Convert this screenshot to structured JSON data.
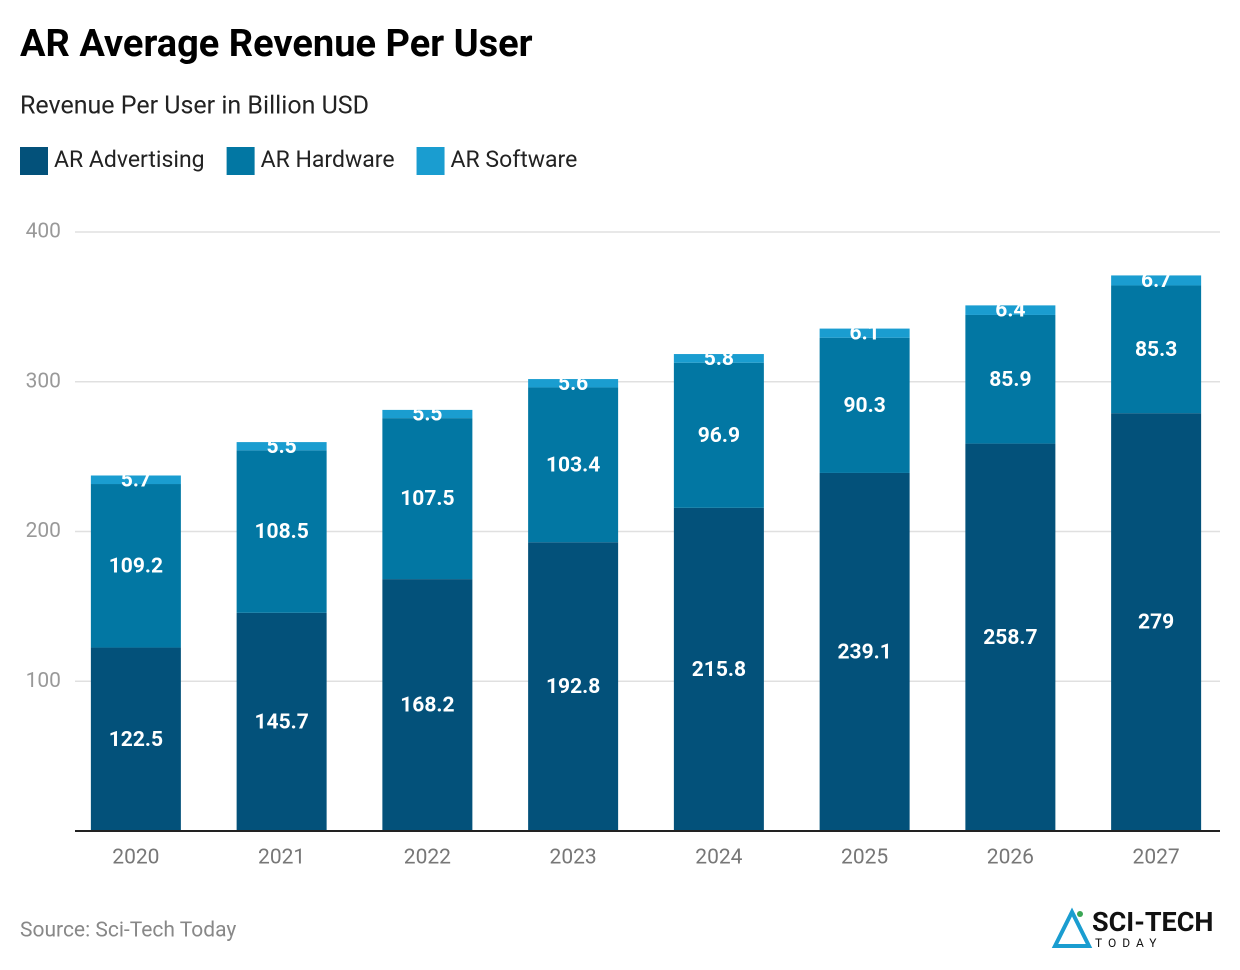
{
  "chart_data": {
    "type": "stacked-bar",
    "title": "AR Average Revenue Per User",
    "subtitle": "Revenue Per User in Billion USD",
    "categories": [
      "2020",
      "2021",
      "2022",
      "2023",
      "2024",
      "2025",
      "2026",
      "2027"
    ],
    "series": [
      {
        "name": "AR Advertising",
        "color": "#03517a",
        "values": [
          122.5,
          145.7,
          168.2,
          192.8,
          215.8,
          239.1,
          258.7,
          279
        ]
      },
      {
        "name": "AR Hardware",
        "color": "#0277a3",
        "values": [
          109.2,
          108.5,
          107.5,
          103.4,
          96.9,
          90.3,
          85.9,
          85.3
        ]
      },
      {
        "name": "AR Software",
        "color": "#1a9dd0",
        "values": [
          5.7,
          5.5,
          5.5,
          5.6,
          5.8,
          6.1,
          6.4,
          6.7
        ]
      }
    ],
    "ylim": [
      0,
      400
    ],
    "yticks": [
      100,
      200,
      300,
      400
    ],
    "grid": true,
    "source": "Source: Sci-Tech Today",
    "logo": {
      "main": "SCI-TECH",
      "sub": "TODAY"
    }
  }
}
